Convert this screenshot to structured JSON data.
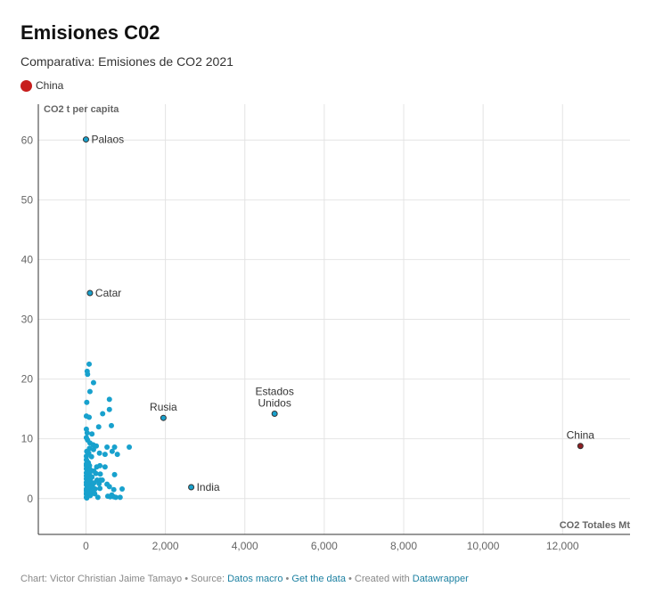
{
  "header": {
    "title": "Emisiones C02",
    "subtitle": "Comparativa: Emisiones de CO2 2021",
    "legend_label": "China",
    "legend_color": "#c71e1d"
  },
  "chart_data": {
    "type": "scatter",
    "xlabel": "CO2 Totales Mt",
    "ylabel": "CO2 t per capita",
    "xlim": [
      -1200,
      13700
    ],
    "ylim": [
      -6,
      66
    ],
    "x_ticks": [
      0,
      2000,
      4000,
      6000,
      8000,
      10000,
      12000
    ],
    "x_tick_labels": [
      "0",
      "2,000",
      "4,000",
      "6,000",
      "8,000",
      "10,000",
      "12,000"
    ],
    "y_ticks": [
      0,
      10,
      20,
      30,
      40,
      50,
      60
    ],
    "y_tick_labels": [
      "0",
      "10",
      "20",
      "30",
      "40",
      "50",
      "60"
    ],
    "grid": true,
    "colors": {
      "default": "#18a1cd",
      "highlight": "#8f1e22",
      "outline": "#333333"
    },
    "labeled_points": [
      {
        "label": "Palaos",
        "x": 0,
        "y": 60.1
      },
      {
        "label": "Catar",
        "x": 100,
        "y": 34.4
      },
      {
        "label": "Rusia",
        "x": 1950,
        "y": 13.5
      },
      {
        "label": "Estados Unidos",
        "x": 4750,
        "y": 14.2
      },
      {
        "label": "India",
        "x": 2650,
        "y": 1.9
      },
      {
        "label": "China",
        "x": 12450,
        "y": 8.8,
        "highlight": true
      }
    ],
    "points": [
      [
        80,
        22.5
      ],
      [
        30,
        21.3
      ],
      [
        40,
        20.8
      ],
      [
        190,
        19.4
      ],
      [
        100,
        17.9
      ],
      [
        590,
        16.6
      ],
      [
        20,
        16.1
      ],
      [
        590,
        14.9
      ],
      [
        420,
        14.2
      ],
      [
        10,
        13.8
      ],
      [
        80,
        13.6
      ],
      [
        640,
        12.2
      ],
      [
        320,
        12.0
      ],
      [
        10,
        11.6
      ],
      [
        30,
        11.0
      ],
      [
        150,
        10.8
      ],
      [
        10,
        10.2
      ],
      [
        40,
        9.8
      ],
      [
        100,
        9.3
      ],
      [
        180,
        9.0
      ],
      [
        260,
        8.8
      ],
      [
        1090,
        8.6
      ],
      [
        530,
        8.6
      ],
      [
        720,
        8.6
      ],
      [
        90,
        8.4
      ],
      [
        190,
        8.2
      ],
      [
        20,
        7.9
      ],
      [
        660,
        7.9
      ],
      [
        70,
        7.6
      ],
      [
        340,
        7.6
      ],
      [
        790,
        7.4
      ],
      [
        480,
        7.4
      ],
      [
        10,
        7.1
      ],
      [
        140,
        7.0
      ],
      [
        10,
        6.5
      ],
      [
        30,
        6.2
      ],
      [
        60,
        6.0
      ],
      [
        10,
        5.8
      ],
      [
        10,
        5.5
      ],
      [
        90,
        5.5
      ],
      [
        350,
        5.5
      ],
      [
        270,
        5.3
      ],
      [
        480,
        5.3
      ],
      [
        10,
        5.0
      ],
      [
        40,
        4.8
      ],
      [
        110,
        4.8
      ],
      [
        200,
        4.6
      ],
      [
        10,
        4.3
      ],
      [
        90,
        4.2
      ],
      [
        250,
        4.2
      ],
      [
        360,
        4.1
      ],
      [
        720,
        4.0
      ],
      [
        10,
        3.8
      ],
      [
        60,
        3.6
      ],
      [
        150,
        3.6
      ],
      [
        10,
        3.3
      ],
      [
        110,
        3.2
      ],
      [
        280,
        3.1
      ],
      [
        360,
        3.1
      ],
      [
        410,
        3.1
      ],
      [
        40,
        2.9
      ],
      [
        10,
        2.7
      ],
      [
        200,
        2.6
      ],
      [
        110,
        2.5
      ],
      [
        330,
        2.5
      ],
      [
        530,
        2.4
      ],
      [
        10,
        2.3
      ],
      [
        70,
        2.2
      ],
      [
        160,
        2.1
      ],
      [
        590,
        2.0
      ],
      [
        40,
        1.9
      ],
      [
        110,
        1.8
      ],
      [
        350,
        1.7
      ],
      [
        10,
        1.6
      ],
      [
        230,
        1.6
      ],
      [
        910,
        1.6
      ],
      [
        60,
        1.5
      ],
      [
        700,
        1.5
      ],
      [
        10,
        1.3
      ],
      [
        130,
        1.2
      ],
      [
        40,
        1.1
      ],
      [
        10,
        0.9
      ],
      [
        80,
        0.9
      ],
      [
        220,
        0.8
      ],
      [
        10,
        0.7
      ],
      [
        650,
        0.6
      ],
      [
        40,
        0.5
      ],
      [
        110,
        0.5
      ],
      [
        550,
        0.4
      ],
      [
        610,
        0.3
      ],
      [
        700,
        0.3
      ],
      [
        10,
        0.2
      ],
      [
        750,
        0.2
      ],
      [
        860,
        0.2
      ],
      [
        300,
        0.2
      ],
      [
        20,
        0.1
      ]
    ]
  },
  "footer": {
    "prefix": "Chart: Victor Christian Jaime Tamayo • Source: ",
    "source_link": "Datos macro",
    "sep1": " • ",
    "get_data_link": "Get the data",
    "sep2": " • Created with ",
    "datawrapper_link": "Datawrapper"
  }
}
